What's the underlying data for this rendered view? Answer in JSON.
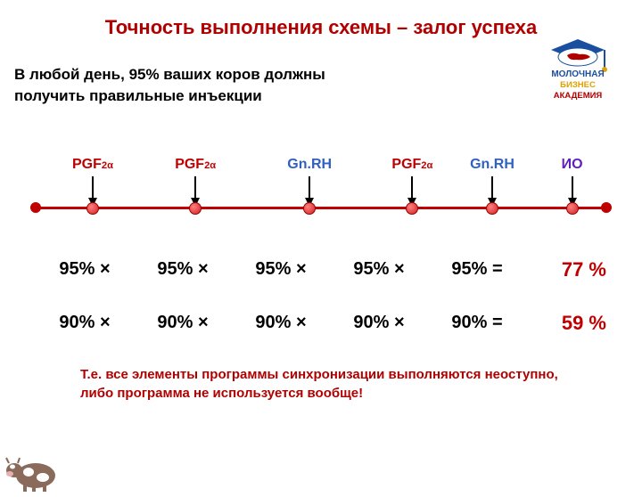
{
  "title": {
    "text": "Точность выполнения схемы – залог успеха",
    "color": "#b00000",
    "fontsize": 22
  },
  "subtitle": {
    "line1": "В любой день, 95% ваших коров должны",
    "line2": "получить правильные инъекции",
    "color": "#000000",
    "fontsize": 17
  },
  "logo": {
    "word1": "МОЛОЧНАЯ",
    "word1_color": "#1a4fa0",
    "word2": "БИЗНЕС",
    "word2_color": "#e0a000",
    "word3": "АКАДЕМИЯ",
    "word3_color": "#b00000",
    "cap_color": "#1a4fa0",
    "map_color": "#b00000"
  },
  "timeline": {
    "line_color": "#c00000",
    "endpoint_color": "#c00000",
    "dot_fill": "#d02020",
    "arrow_color": "#000000",
    "points": [
      {
        "pos_pct": 10,
        "label": "PGF2α",
        "color": "#c00000"
      },
      {
        "pos_pct": 28,
        "label": "PGF2α",
        "color": "#c00000"
      },
      {
        "pos_pct": 48,
        "label": "Gn.RH",
        "color": "#3060c0"
      },
      {
        "pos_pct": 66,
        "label": "PGF2α",
        "color": "#c00000"
      },
      {
        "pos_pct": 80,
        "label": "Gn.RH",
        "color": "#3060c0"
      },
      {
        "pos_pct": 94,
        "label": "ИО",
        "color": "#6020c0"
      }
    ]
  },
  "rows": [
    {
      "cells": [
        "95% ×",
        "95% ×",
        "95% ×",
        "95% ×",
        "95% ="
      ],
      "cell_color": "#000000",
      "result": "77 %",
      "result_color": "#c00000"
    },
    {
      "cells": [
        "90% ×",
        "90% ×",
        "90% ×",
        "90% ×",
        "90% ="
      ],
      "cell_color": "#000000",
      "result": "59 %",
      "result_color": "#c00000"
    }
  ],
  "footnote": {
    "text": "Т.е. все элементы программы синхронизации выполняются неоступно, либо  программа не используется вообще!",
    "color": "#b00000"
  },
  "cow": {
    "body_color": "#8a6a5a",
    "spot_color": "#ffffff"
  }
}
